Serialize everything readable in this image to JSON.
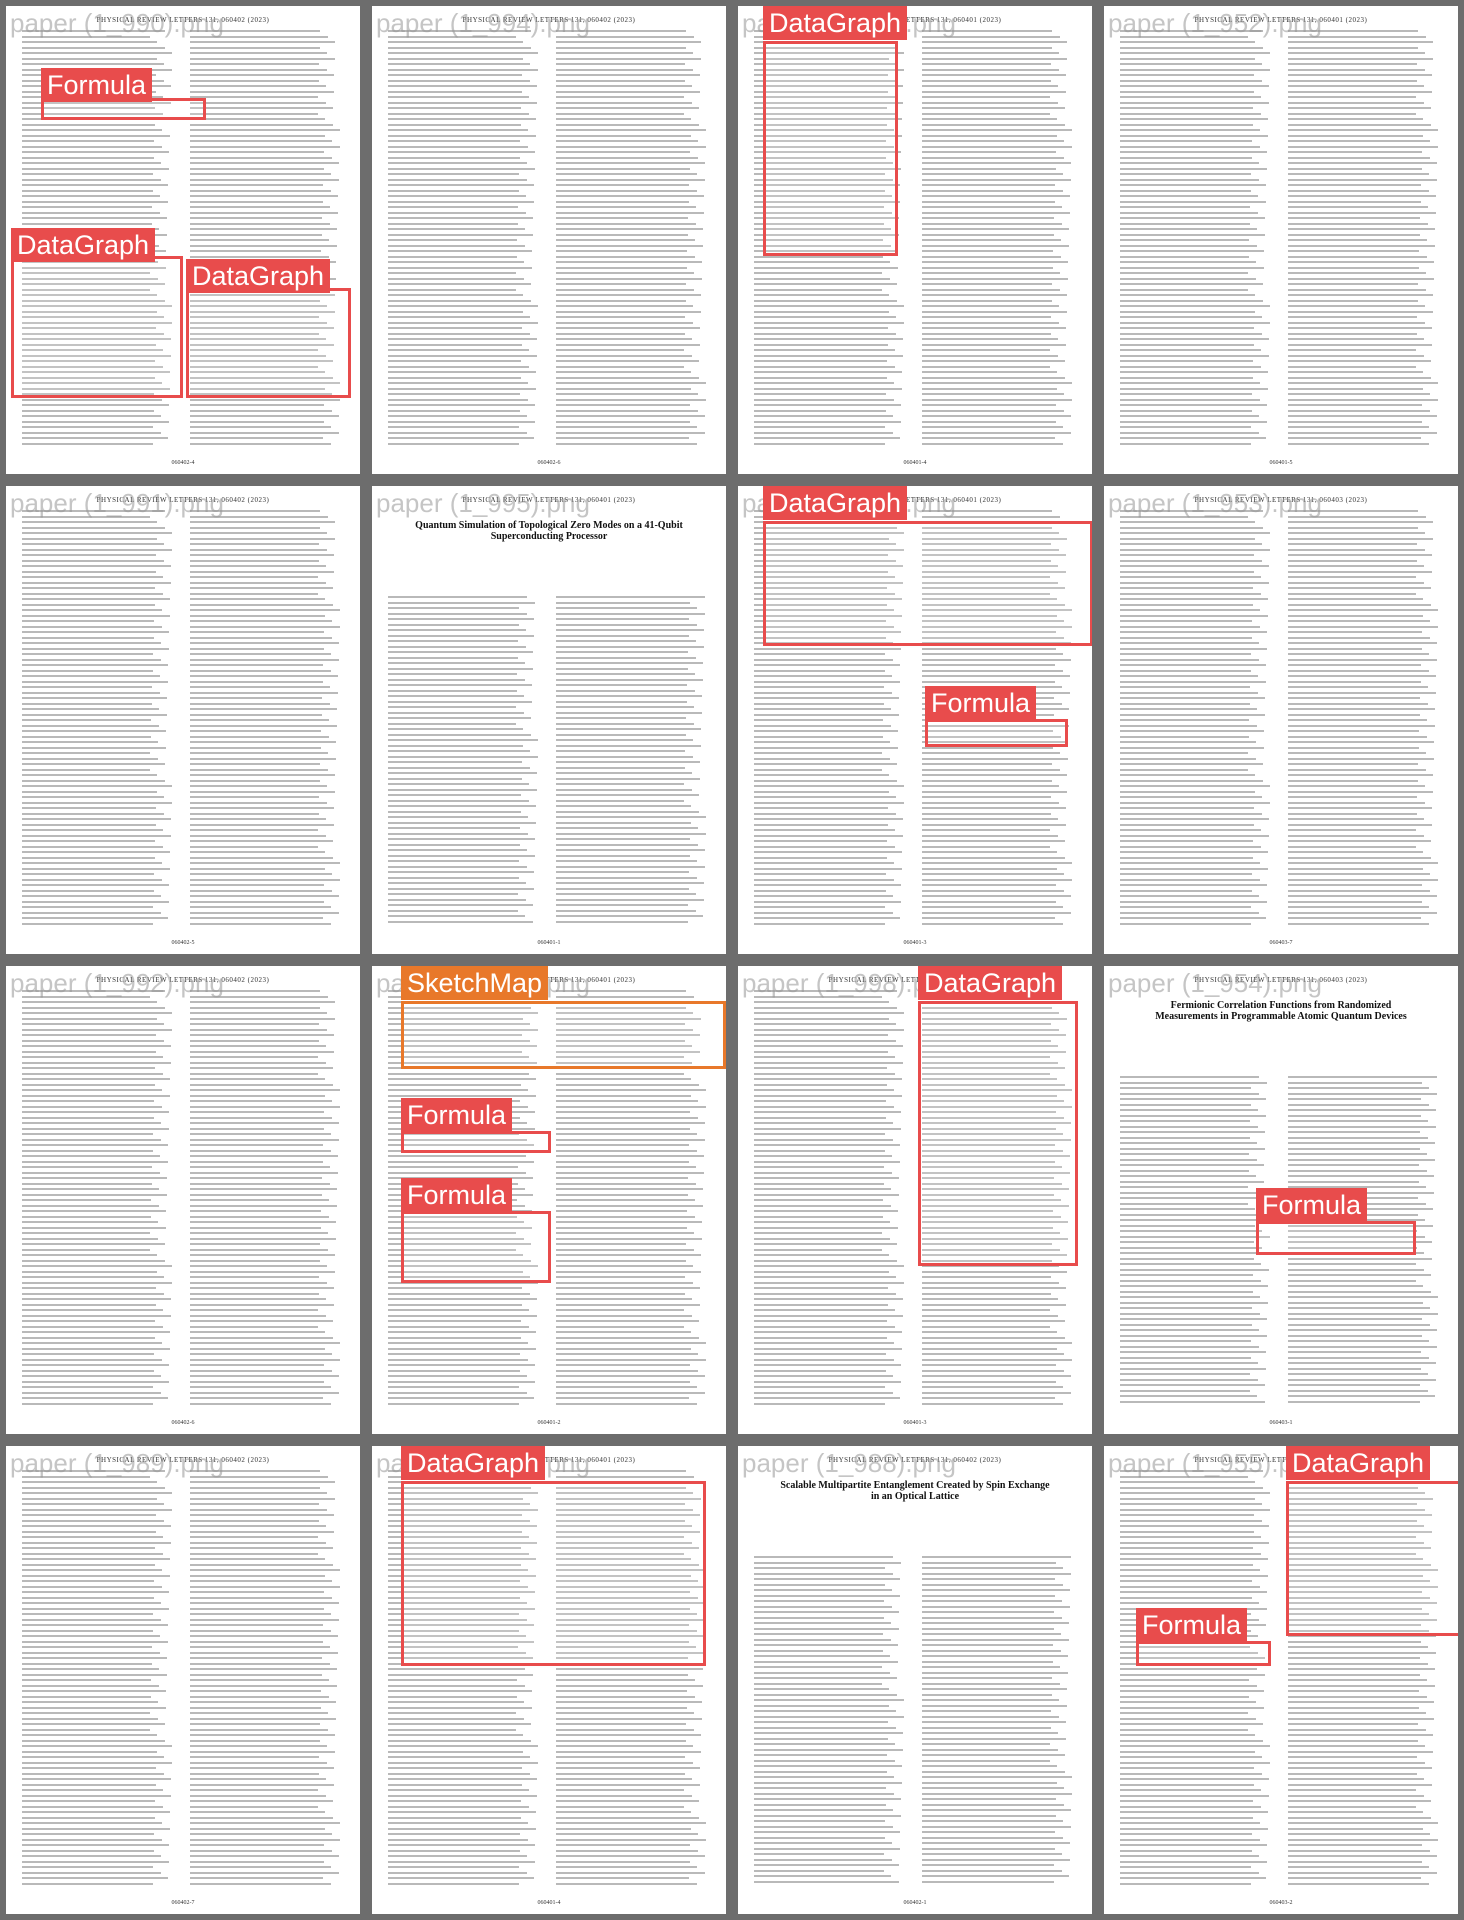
{
  "pages": [
    {
      "watermark": "paper (1_990).png",
      "header": "PHYSICAL REVIEW LETTERS 131, 060402 (2023)",
      "footer": "060402-4",
      "annotations": [
        {
          "label": "Formula"
        },
        {
          "label": "DataGraph"
        },
        {
          "label": "DataGraph"
        }
      ]
    },
    {
      "watermark": "paper (1_994).png",
      "header": "PHYSICAL REVIEW LETTERS 131, 060402 (2023)",
      "footer": "060402-6",
      "annotations": []
    },
    {
      "watermark": "paper (1_993).png",
      "header": "PHYSICAL REVIEW LETTERS 131, 060401 (2023)",
      "footer": "060401-4",
      "annotations": [
        {
          "label": "DataGraph"
        }
      ]
    },
    {
      "watermark": "paper (1_952).png",
      "header": "PHYSICAL REVIEW LETTERS 131, 060401 (2023)",
      "footer": "060401-5",
      "annotations": []
    },
    {
      "watermark": "paper (1_991).png",
      "header": "PHYSICAL REVIEW LETTERS 131, 060402 (2023)",
      "footer": "060402-5",
      "annotations": []
    },
    {
      "watermark": "paper (1_995).png",
      "header": "PHYSICAL REVIEW LETTERS 131, 060401 (2023)",
      "title": "Quantum Simulation of Topological Zero Modes on a 41-Qubit Superconducting Processor",
      "footer": "060401-1",
      "annotations": []
    },
    {
      "watermark": "paper (1_996).png",
      "header": "PHYSICAL REVIEW LETTERS 131, 060401 (2023)",
      "footer": "060401-3",
      "annotations": [
        {
          "label": "DataGraph"
        },
        {
          "label": "Formula"
        }
      ]
    },
    {
      "watermark": "paper (1_953).png",
      "header": "PHYSICAL REVIEW LETTERS 131, 060403 (2023)",
      "footer": "060403-7",
      "annotations": []
    },
    {
      "watermark": "paper (1_992).png",
      "header": "PHYSICAL REVIEW LETTERS 131, 060402 (2023)",
      "footer": "060402-6",
      "annotations": []
    },
    {
      "watermark": "paper (1_997).png",
      "header": "PHYSICAL REVIEW LETTERS 131, 060401 (2023)",
      "footer": "060401-2",
      "annotations": [
        {
          "label": "SketchMap"
        },
        {
          "label": "Formula"
        },
        {
          "label": "Formula"
        }
      ]
    },
    {
      "watermark": "paper (1_998).png",
      "header": "PHYSICAL REVIEW LETTERS 131, 060401 (2023)",
      "footer": "060401-3",
      "annotations": [
        {
          "label": "DataGraph"
        }
      ]
    },
    {
      "watermark": "paper (1_954).png",
      "header": "PHYSICAL REVIEW LETTERS 131, 060403 (2023)",
      "title": "Fermionic Correlation Functions from Randomized Measurements in Programmable Atomic Quantum Devices",
      "footer": "060403-1",
      "annotations": [
        {
          "label": "Formula"
        }
      ]
    },
    {
      "watermark": "paper (1_989).png",
      "header": "PHYSICAL REVIEW LETTERS 131, 060402 (2023)",
      "footer": "060402-7",
      "annotations": []
    },
    {
      "watermark": "paper (1_999).png",
      "header": "PHYSICAL REVIEW LETTERS 131, 060401 (2023)",
      "footer": "060401-4",
      "annotations": [
        {
          "label": "DataGraph"
        }
      ]
    },
    {
      "watermark": "paper (1_988).png",
      "header": "PHYSICAL REVIEW LETTERS 131, 060402 (2023)",
      "title": "Scalable Multipartite Entanglement Created by Spin Exchange in an Optical Lattice",
      "footer": "060402-1",
      "annotations": []
    },
    {
      "watermark": "paper (1_955).png",
      "header": "PHYSICAL REVIEW LETTERS 131, 060403 (2023)",
      "footer": "060403-2",
      "annotations": [
        {
          "label": "DataGraph"
        },
        {
          "label": "Formula"
        }
      ]
    }
  ]
}
